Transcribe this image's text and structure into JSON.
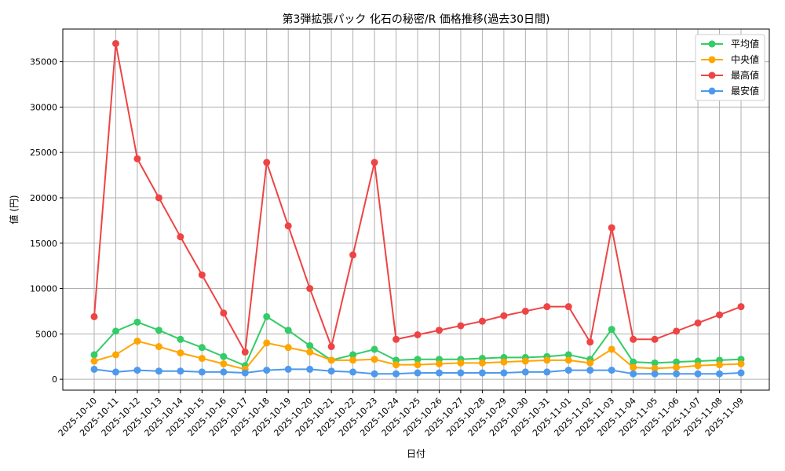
{
  "chart_data": {
    "type": "line",
    "title": "第3弾拡張パック 化石の秘密/R 価格推移(過去30日間)",
    "xlabel": "日付",
    "ylabel": "値 (円)",
    "ylim": [
      -1200,
      38600
    ],
    "yticks": [
      0,
      5000,
      10000,
      15000,
      20000,
      25000,
      30000,
      35000
    ],
    "grid": true,
    "legend_position": "top-right",
    "categories": [
      "2025-10-10",
      "2025-10-11",
      "2025-10-12",
      "2025-10-13",
      "2025-10-14",
      "2025-10-15",
      "2025-10-16",
      "2025-10-17",
      "2025-10-18",
      "2025-10-19",
      "2025-10-20",
      "2025-10-21",
      "2025-10-22",
      "2025-10-23",
      "2025-10-24",
      "2025-10-25",
      "2025-10-26",
      "2025-10-27",
      "2025-10-28",
      "2025-10-29",
      "2025-10-30",
      "2025-10-31",
      "2025-11-01",
      "2025-11-02",
      "2025-11-03",
      "2025-11-04",
      "2025-11-05",
      "2025-11-06",
      "2025-11-07",
      "2025-11-08",
      "2025-11-09"
    ],
    "series": [
      {
        "name": "平均値",
        "color": "#33cc66",
        "values": [
          2700,
          5300,
          6300,
          5400,
          4400,
          3500,
          2500,
          1500,
          6900,
          5400,
          3700,
          2100,
          2700,
          3300,
          2100,
          2200,
          2200,
          2200,
          2300,
          2400,
          2400,
          2500,
          2700,
          2200,
          5500,
          1900,
          1800,
          1900,
          2000,
          2100,
          2200
        ]
      },
      {
        "name": "中央値",
        "color": "#ffa500",
        "values": [
          2000,
          2700,
          4200,
          3600,
          2900,
          2300,
          1700,
          1100,
          4000,
          3500,
          3000,
          2100,
          2100,
          2200,
          1600,
          1600,
          1700,
          1800,
          1800,
          1900,
          2000,
          2100,
          2100,
          1800,
          3300,
          1300,
          1200,
          1300,
          1500,
          1600,
          1700
        ]
      },
      {
        "name": "最高値",
        "color": "#ee4444",
        "values": [
          6900,
          37000,
          24300,
          20000,
          15700,
          11500,
          7300,
          3000,
          23900,
          16900,
          10000,
          3600,
          13700,
          23900,
          4400,
          4900,
          5400,
          5900,
          6400,
          7000,
          7500,
          8000,
          8000,
          4100,
          16700,
          4400,
          4400,
          5300,
          6200,
          7100,
          8000
        ]
      },
      {
        "name": "最安値",
        "color": "#4d99ee",
        "values": [
          1100,
          800,
          1000,
          900,
          900,
          800,
          800,
          700,
          1000,
          1100,
          1100,
          900,
          800,
          600,
          600,
          700,
          700,
          700,
          700,
          700,
          800,
          800,
          1000,
          1000,
          1000,
          600,
          600,
          600,
          600,
          600,
          700
        ]
      }
    ]
  }
}
